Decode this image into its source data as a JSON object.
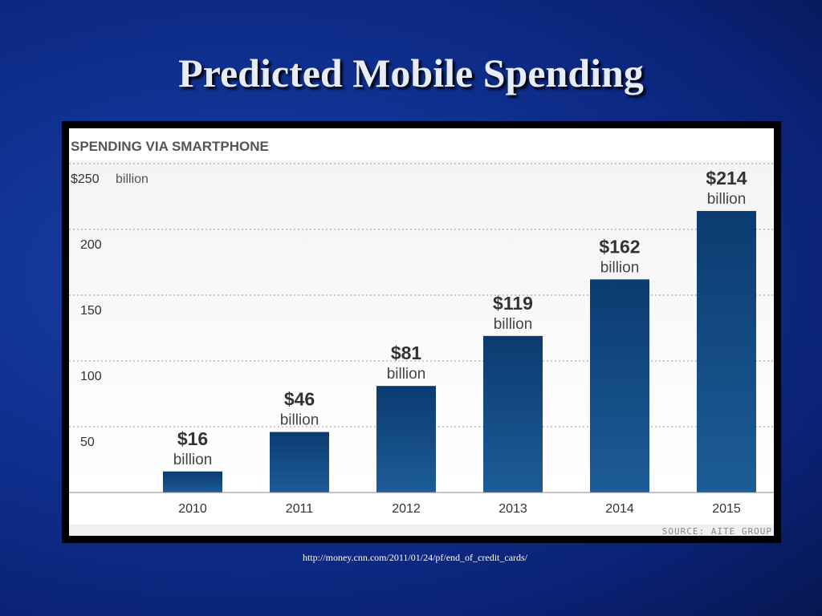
{
  "slide": {
    "title": "Predicted Mobile Spending",
    "url": "http://money.cnn.com/2011/01/24/pf/end_of_credit_cards/"
  },
  "colors": {
    "background": "#0f2f8e",
    "bar_top": "#0b3b70",
    "bar_bottom": "#1d5c98",
    "title_text": "#e8ecf8"
  },
  "chart_data": {
    "type": "bar",
    "title": "SPENDING VIA SMARTPHONE",
    "categories": [
      "2010",
      "2011",
      "2012",
      "2013",
      "2014",
      "2015"
    ],
    "values": [
      16,
      46,
      81,
      119,
      162,
      214
    ],
    "value_labels": [
      "$16",
      "$46",
      "$81",
      "$119",
      "$162",
      "$214"
    ],
    "value_unit": "billion",
    "y_ticks": [
      {
        "value": 50,
        "label": "50"
      },
      {
        "value": 100,
        "label": "100"
      },
      {
        "value": 150,
        "label": "150"
      },
      {
        "value": 200,
        "label": "200"
      },
      {
        "value": 250,
        "label": "$250"
      }
    ],
    "y_top_unit": "billion",
    "ylim": [
      0,
      250
    ],
    "grid": true,
    "source": "SOURCE: AITE GROUP"
  }
}
